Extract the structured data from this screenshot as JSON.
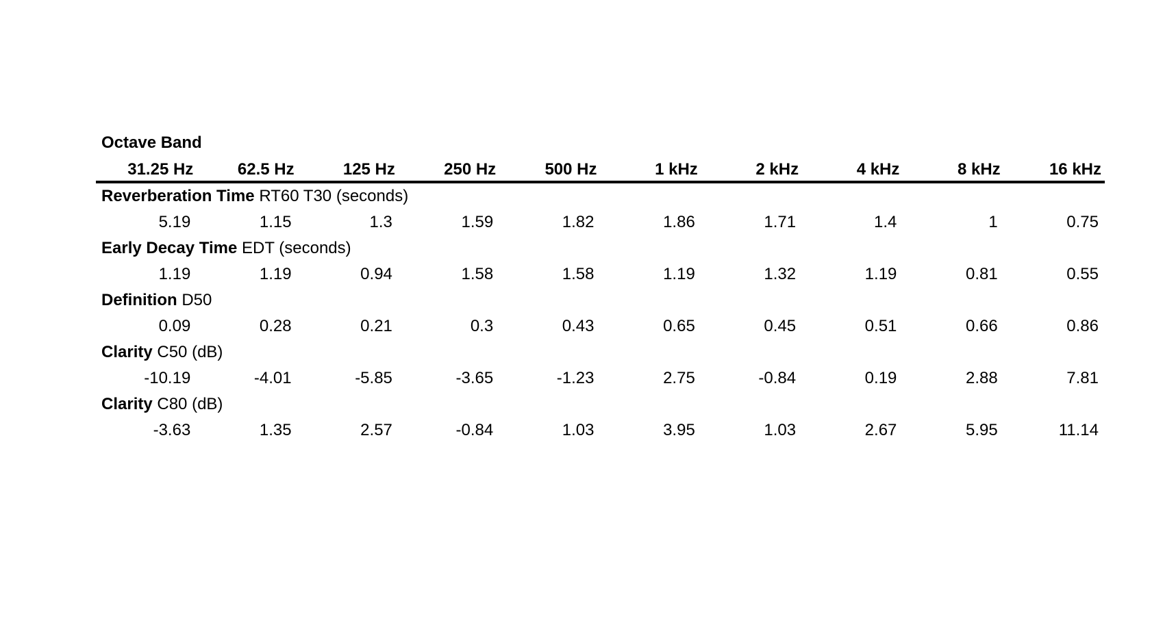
{
  "table": {
    "corner_label": "Octave Band",
    "columns": [
      "31.25 Hz",
      "62.5 Hz",
      "125 Hz",
      "250 Hz",
      "500 Hz",
      "1 kHz",
      "2 kHz",
      "4 kHz",
      "8 kHz",
      "16 kHz"
    ],
    "sections": [
      {
        "label_bold": "Reverberation Time",
        "label_rest": "RT60 T30 (seconds)",
        "values": [
          "5.19",
          "1.15",
          "1.3",
          "1.59",
          "1.82",
          "1.86",
          "1.71",
          "1.4",
          "1",
          "0.75"
        ]
      },
      {
        "label_bold": "Early Decay Time",
        "label_rest": "EDT (seconds)",
        "values": [
          "1.19",
          "1.19",
          "0.94",
          "1.58",
          "1.58",
          "1.19",
          "1.32",
          "1.19",
          "0.81",
          "0.55"
        ]
      },
      {
        "label_bold": "Definition",
        "label_rest": "D50",
        "values": [
          "0.09",
          "0.28",
          "0.21",
          "0.3",
          "0.43",
          "0.65",
          "0.45",
          "0.51",
          "0.66",
          "0.86"
        ]
      },
      {
        "label_bold": "Clarity",
        "label_rest": "C50 (dB)",
        "values": [
          "-10.19",
          "-4.01",
          "-5.85",
          "-3.65",
          "-1.23",
          "2.75",
          "-0.84",
          "0.19",
          "2.88",
          "7.81"
        ]
      },
      {
        "label_bold": "Clarity",
        "label_rest": "C80 (dB)",
        "values": [
          "-3.63",
          "1.35",
          "2.57",
          "-0.84",
          "1.03",
          "3.95",
          "1.03",
          "2.67",
          "5.95",
          "11.14"
        ]
      }
    ]
  },
  "colors": {
    "text": "#000000",
    "background": "#ffffff",
    "rule": "#000000"
  }
}
